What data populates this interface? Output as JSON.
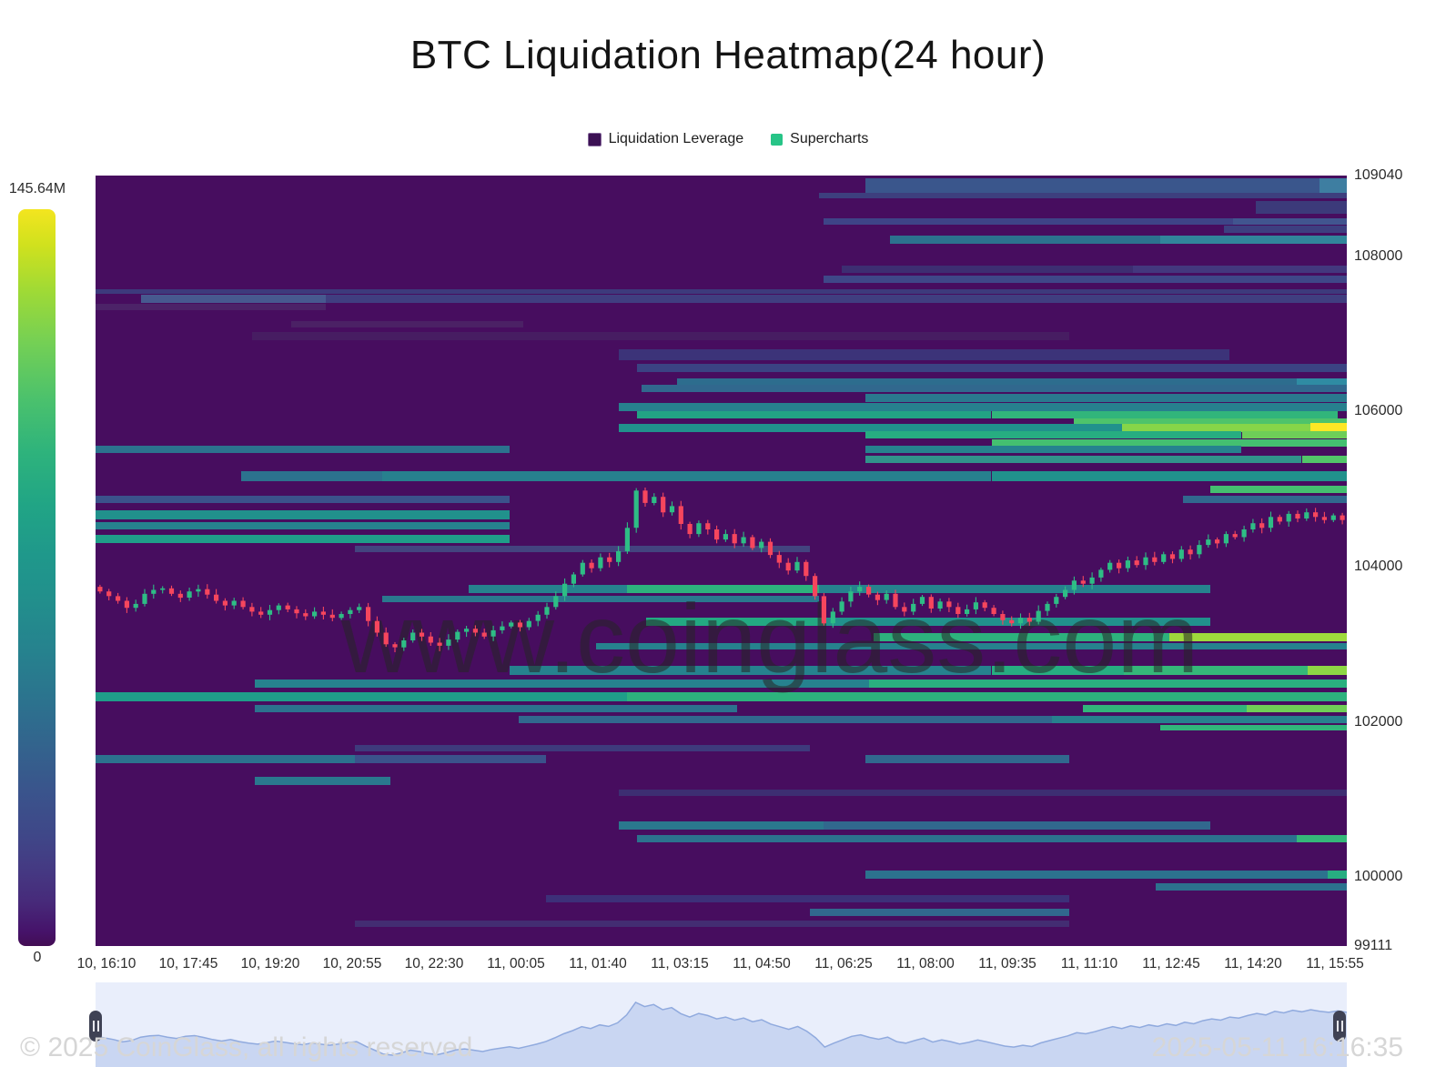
{
  "title": "BTC Liquidation Heatmap(24 hour)",
  "watermark": "www.coinglass.com",
  "legend": {
    "items": [
      {
        "label": "Liquidation Leverage",
        "color": "#3b1053"
      },
      {
        "label": "Supercharts",
        "color": "#27c487"
      }
    ]
  },
  "colorbar": {
    "max_label": "145.64M",
    "min_label": "0"
  },
  "footer": {
    "copyright": "© 2025 CoinGlass, all rights reserved",
    "timestamp": "2025-05-11 16:16:35"
  },
  "y_axis": {
    "min": 99111,
    "max": 109040,
    "ticks": [
      109040,
      108000,
      106000,
      104000,
      102000,
      100000,
      99111
    ]
  },
  "x_axis": {
    "ticks": [
      "10, 16:10",
      "10, 17:45",
      "10, 19:20",
      "10, 20:55",
      "10, 22:30",
      "11, 00:05",
      "11, 01:40",
      "11, 03:15",
      "11, 04:50",
      "11, 06:25",
      "11, 08:00",
      "11, 09:35",
      "11, 11:10",
      "11, 12:45",
      "11, 14:20",
      "11, 15:55"
    ]
  },
  "chart_data": {
    "type": "heatmap",
    "title": "BTC Liquidation Heatmap(24 hour)",
    "price_range": [
      99111,
      109040
    ],
    "time_range": [
      "10, 16:10",
      "11, 15:55"
    ],
    "intensity_scale": {
      "min": "0",
      "max": "145.64M"
    },
    "background_color": "#470d5f",
    "stripes_format": [
      "price",
      "x0_fraction",
      "x1_fraction",
      "color",
      "height_px"
    ],
    "stripes": [
      [
        108910,
        0.615,
        1.0,
        "#3a568c",
        16
      ],
      [
        108910,
        0.978,
        1.0,
        "#3e7ea1",
        16
      ],
      [
        108782,
        0.578,
        1.0,
        "#3d3f7e",
        6
      ],
      [
        108630,
        0.927,
        1.0,
        "#3c3a7a",
        14
      ],
      [
        108454,
        0.582,
        1.0,
        "#3e4487",
        7
      ],
      [
        108454,
        0.909,
        1.0,
        "#41558f",
        7
      ],
      [
        108349,
        0.902,
        1.0,
        "#3d3f80",
        8
      ],
      [
        108219,
        0.635,
        0.851,
        "#2c728e",
        9
      ],
      [
        108219,
        0.851,
        1.0,
        "#31859b",
        9
      ],
      [
        107833,
        0.596,
        1.0,
        "#3d2e72",
        8
      ],
      [
        107833,
        0.829,
        1.0,
        "#43387e",
        8
      ],
      [
        107704,
        0.582,
        1.0,
        "#3f4788",
        8
      ],
      [
        107551,
        0.0,
        1.0,
        "#3d3a7c",
        5
      ],
      [
        107458,
        0.036,
        0.184,
        "#47598f",
        9
      ],
      [
        107458,
        0.184,
        1.0,
        "#403e80",
        9
      ],
      [
        107352,
        0.0,
        0.184,
        "#4c2368",
        7
      ],
      [
        107129,
        0.156,
        0.342,
        "#4b2165",
        7
      ],
      [
        106977,
        0.125,
        0.778,
        "#471d62",
        9
      ],
      [
        106731,
        0.418,
        0.906,
        "#3c3379",
        12
      ],
      [
        106567,
        0.433,
        1.0,
        "#3b4383",
        9
      ],
      [
        106391,
        0.465,
        1.0,
        "#2d6d8e",
        7
      ],
      [
        106391,
        0.96,
        1.0,
        "#2f8ca3",
        7
      ],
      [
        106297,
        0.436,
        1.0,
        "#31688e",
        8
      ],
      [
        106180,
        0.615,
        1.0,
        "#2a788e",
        9
      ],
      [
        106063,
        0.418,
        1.0,
        "#27808e",
        9
      ],
      [
        105957,
        0.433,
        0.716,
        "#22a384",
        8
      ],
      [
        105957,
        0.716,
        0.993,
        "#31b57b",
        8
      ],
      [
        105864,
        0.782,
        1.0,
        "#4ec36b",
        7
      ],
      [
        105793,
        0.418,
        0.82,
        "#21918c",
        9
      ],
      [
        105793,
        0.82,
        0.971,
        "#86d549",
        9
      ],
      [
        105793,
        0.971,
        1.0,
        "#fde725",
        10
      ],
      [
        105699,
        0.615,
        0.916,
        "#27ad81",
        8
      ],
      [
        105699,
        0.916,
        1.0,
        "#6ece58",
        8
      ],
      [
        105594,
        0.716,
        1.0,
        "#44bf70",
        8
      ],
      [
        105512,
        0.0,
        0.331,
        "#2c728e",
        8
      ],
      [
        105512,
        0.615,
        0.916,
        "#26828e",
        8
      ],
      [
        105383,
        0.615,
        0.964,
        "#31938b",
        8
      ],
      [
        105383,
        0.964,
        1.0,
        "#52c569",
        8
      ],
      [
        105172,
        0.116,
        0.229,
        "#2c728e",
        11
      ],
      [
        105172,
        0.229,
        0.716,
        "#27808e",
        11
      ],
      [
        105172,
        0.716,
        1.0,
        "#21918c",
        11
      ],
      [
        104996,
        0.891,
        1.0,
        "#44bf70",
        8
      ],
      [
        104867,
        0.0,
        0.331,
        "#3b528b",
        8
      ],
      [
        104867,
        0.869,
        1.0,
        "#31688e",
        8
      ],
      [
        104668,
        0.0,
        0.331,
        "#21918c",
        10
      ],
      [
        104527,
        0.0,
        0.331,
        "#26828e",
        8
      ],
      [
        104363,
        0.0,
        0.331,
        "#1f9e89",
        9
      ],
      [
        104234,
        0.207,
        0.571,
        "#43447f",
        7
      ],
      [
        103707,
        0.298,
        0.425,
        "#26828e",
        9
      ],
      [
        103707,
        0.425,
        0.578,
        "#2db27d",
        9
      ],
      [
        103707,
        0.578,
        0.891,
        "#26828e",
        9
      ],
      [
        103578,
        0.229,
        0.578,
        "#2a788e",
        7
      ],
      [
        103285,
        0.44,
        0.582,
        "#23a982",
        9
      ],
      [
        103285,
        0.582,
        0.891,
        "#21918c",
        9
      ],
      [
        103086,
        0.622,
        0.858,
        "#2db27d",
        9
      ],
      [
        103086,
        0.858,
        1.0,
        "#9ed93c",
        9
      ],
      [
        102980,
        0.4,
        1.0,
        "#26828e",
        7
      ],
      [
        102664,
        0.331,
        0.716,
        "#26828e",
        10
      ],
      [
        102664,
        0.716,
        0.822,
        "#27ad81",
        10
      ],
      [
        102664,
        0.822,
        0.969,
        "#35b779",
        10
      ],
      [
        102664,
        0.969,
        1.0,
        "#8ed645",
        10
      ],
      [
        102488,
        0.127,
        0.618,
        "#26828e",
        9
      ],
      [
        102488,
        0.618,
        1.0,
        "#2ab07f",
        9
      ],
      [
        102324,
        0.0,
        0.425,
        "#1f9e89",
        10
      ],
      [
        102324,
        0.425,
        1.0,
        "#2db27d",
        10
      ],
      [
        102171,
        0.127,
        0.513,
        "#2c728e",
        8
      ],
      [
        102171,
        0.789,
        0.92,
        "#31b57b",
        8
      ],
      [
        102171,
        0.92,
        1.0,
        "#70cf57",
        8
      ],
      [
        102031,
        0.338,
        0.764,
        "#31688e",
        8
      ],
      [
        102031,
        0.764,
        1.0,
        "#27808e",
        8
      ],
      [
        101925,
        0.851,
        1.0,
        "#31b57b",
        6
      ],
      [
        101667,
        0.207,
        0.571,
        "#3e3a7c",
        7
      ],
      [
        101515,
        0.0,
        0.207,
        "#2c728e",
        9
      ],
      [
        101515,
        0.207,
        0.36,
        "#3b528b",
        9
      ],
      [
        101515,
        0.615,
        0.778,
        "#31688e",
        9
      ],
      [
        101245,
        0.127,
        0.236,
        "#2a788e",
        9
      ],
      [
        101081,
        0.418,
        1.0,
        "#3d2e72",
        7
      ],
      [
        100659,
        0.418,
        0.582,
        "#2a788e",
        9
      ],
      [
        100659,
        0.582,
        0.891,
        "#31688e",
        9
      ],
      [
        100495,
        0.433,
        0.96,
        "#2c728e",
        8
      ],
      [
        100495,
        0.96,
        1.0,
        "#35b779",
        8
      ],
      [
        100026,
        0.615,
        0.985,
        "#2c728e",
        9
      ],
      [
        100026,
        0.985,
        1.0,
        "#27ad81",
        9
      ],
      [
        99874,
        0.847,
        1.0,
        "#2c728e",
        8
      ],
      [
        99722,
        0.36,
        0.778,
        "#3d3079",
        8
      ],
      [
        99546,
        0.571,
        0.778,
        "#31688e",
        8
      ],
      [
        99394,
        0.207,
        0.778,
        "#432d72",
        7
      ]
    ],
    "candles": {
      "up_color": "#2ebd85",
      "down_color": "#f6465d",
      "closes": [
        103680,
        103620,
        103560,
        103470,
        103520,
        103650,
        103700,
        103720,
        103650,
        103600,
        103680,
        103710,
        103640,
        103560,
        103500,
        103560,
        103480,
        103420,
        103380,
        103440,
        103500,
        103450,
        103400,
        103360,
        103420,
        103380,
        103340,
        103390,
        103440,
        103480,
        103300,
        103150,
        103000,
        102960,
        103050,
        103150,
        103100,
        103020,
        102980,
        103060,
        103160,
        103200,
        103150,
        103100,
        103180,
        103230,
        103280,
        103220,
        103300,
        103380,
        103480,
        103620,
        103780,
        103900,
        104050,
        103980,
        104120,
        104060,
        104200,
        104500,
        104980,
        104820,
        104900,
        104700,
        104780,
        104550,
        104420,
        104560,
        104480,
        104350,
        104420,
        104300,
        104380,
        104240,
        104320,
        104150,
        104050,
        103950,
        104060,
        103880,
        103620,
        103270,
        103420,
        103550,
        103680,
        103740,
        103640,
        103570,
        103650,
        103480,
        103420,
        103520,
        103610,
        103460,
        103550,
        103480,
        103390,
        103450,
        103540,
        103470,
        103390,
        103310,
        103270,
        103340,
        103290,
        103430,
        103520,
        103610,
        103700,
        103820,
        103780,
        103860,
        103960,
        104050,
        103980,
        104080,
        104020,
        104120,
        104060,
        104160,
        104100,
        104220,
        104160,
        104280,
        104350,
        104300,
        104420,
        104380,
        104480,
        104560,
        104500,
        104640,
        104580,
        104680,
        104620,
        104700,
        104640,
        104600,
        104660,
        104600
      ]
    },
    "navigator": {
      "bg": "#e9eefb",
      "fill_color": "#c9d6f2",
      "line_color": "#90aade",
      "handle_color": "#3f4254"
    }
  }
}
